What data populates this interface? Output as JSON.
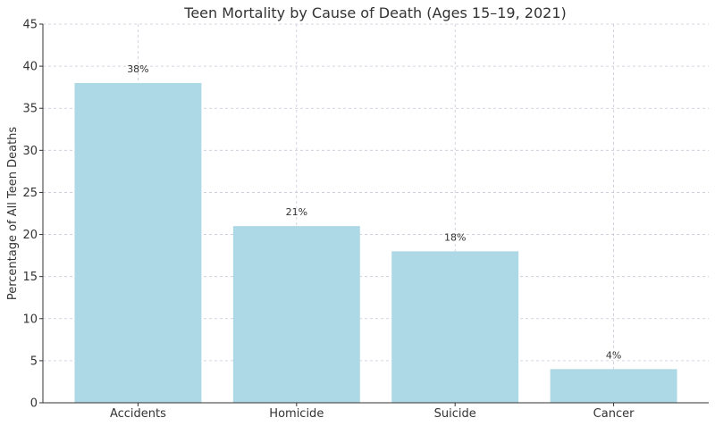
{
  "chart_data": {
    "type": "bar",
    "title": "Teen Mortality by Cause of Death (Ages 15–19, 2021)",
    "xlabel": "",
    "ylabel": "Percentage of All Teen Deaths",
    "categories": [
      "Accidents",
      "Homicide",
      "Suicide",
      "Cancer"
    ],
    "values": [
      38,
      21,
      18,
      4
    ],
    "data_labels": [
      "38%",
      "21%",
      "18%",
      "4%"
    ],
    "ylim": [
      0,
      45
    ],
    "yticks": [
      0,
      5,
      10,
      15,
      20,
      25,
      30,
      35,
      40,
      45
    ],
    "grid": true,
    "bar_color": "#add8e6"
  }
}
